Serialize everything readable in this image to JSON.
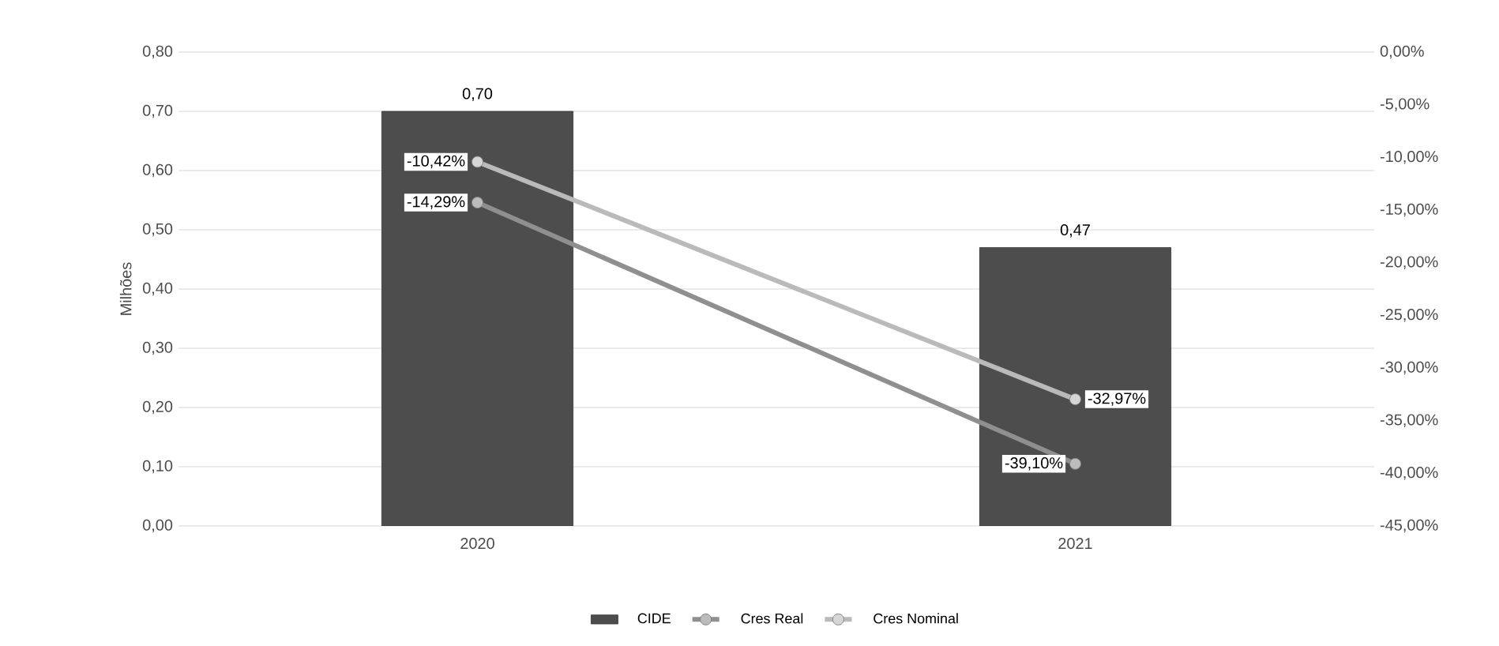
{
  "chart_data": {
    "type": "bar",
    "ylabel": "Milhões",
    "categories": [
      "2020",
      "2021"
    ],
    "series": [
      {
        "name": "CIDE",
        "color": "#4d4d4d",
        "values": [
          0.7,
          0.47
        ],
        "value_labels": [
          "0,70",
          "0,47"
        ]
      },
      {
        "name": "Cres Real",
        "type": "line",
        "axis": "y2",
        "color": "#8f8f8f",
        "values": [
          -14.29,
          -39.1
        ],
        "value_labels": [
          "-14,29%",
          "-39,10%"
        ]
      },
      {
        "name": "Cres Nominal",
        "type": "line",
        "axis": "y2",
        "color": "#bababa",
        "values": [
          -10.42,
          -32.97
        ],
        "value_labels": [
          "-10,42%",
          "-32,97%"
        ]
      }
    ],
    "ylim": [
      0,
      0.8
    ],
    "yticks": [
      {
        "value": 0,
        "label": "0,00"
      },
      {
        "value": 0.1,
        "label": "0,10"
      },
      {
        "value": 0.2,
        "label": "0,20"
      },
      {
        "value": 0.3,
        "label": "0,30"
      },
      {
        "value": 0.4,
        "label": "0,40"
      },
      {
        "value": 0.5,
        "label": "0,50"
      },
      {
        "value": 0.6,
        "label": "0,60"
      },
      {
        "value": 0.7,
        "label": "0,70"
      },
      {
        "value": 0.8,
        "label": "0,80"
      }
    ],
    "y2lim": [
      -45,
      0
    ],
    "y2ticks": [
      {
        "value": -45,
        "label": "-45,00%"
      },
      {
        "value": -40,
        "label": "-40,00%"
      },
      {
        "value": -35,
        "label": "-35,00%"
      },
      {
        "value": -30,
        "label": "-30,00%"
      },
      {
        "value": -25,
        "label": "-25,00%"
      },
      {
        "value": -20,
        "label": "-20,00%"
      },
      {
        "value": -15,
        "label": "-15,00%"
      },
      {
        "value": -10,
        "label": "-10,00%"
      },
      {
        "value": -5,
        "label": "-5,00%"
      },
      {
        "value": 0,
        "label": "0,00%"
      }
    ],
    "grid": "y",
    "legend": "bottom",
    "marker": "circle"
  }
}
